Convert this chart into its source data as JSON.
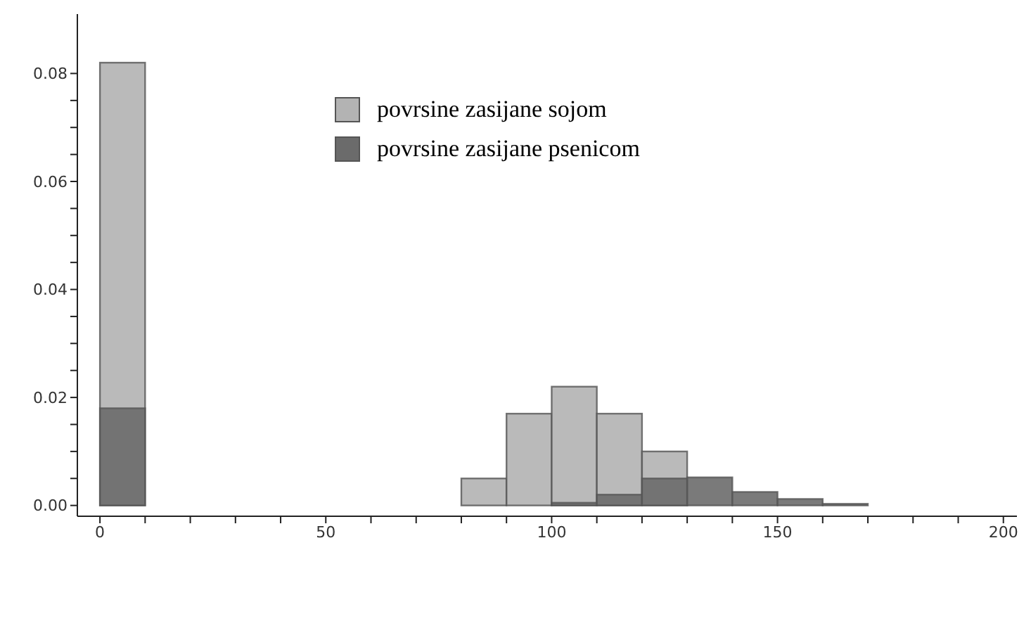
{
  "chart_data": {
    "type": "histogram",
    "bins": [
      0,
      10,
      20,
      30,
      40,
      50,
      60,
      70,
      80,
      90,
      100,
      110,
      120,
      130,
      140,
      150,
      160,
      170,
      180,
      190,
      200
    ],
    "series": [
      {
        "name": "povrsine zasijane sojom",
        "color": "#b3b3b3",
        "values": [
          0.082,
          0,
          0,
          0,
          0,
          0,
          0,
          0,
          0.005,
          0.017,
          0.022,
          0.017,
          0.01,
          0,
          0,
          0,
          0,
          0,
          0,
          0
        ]
      },
      {
        "name": "povrsine zasijane psenicom",
        "color": "#6b6b6b",
        "values": [
          0.018,
          0,
          0,
          0,
          0,
          0,
          0,
          0,
          0,
          0,
          0.0005,
          0.002,
          0.005,
          0.0052,
          0.0025,
          0.0012,
          0.0003,
          0,
          0,
          0
        ]
      }
    ],
    "xlim": [
      -5,
      203
    ],
    "ylim": [
      -0.002,
      0.091
    ],
    "xticks": [
      0,
      {
        "value": 10,
        "label": null
      },
      {
        "value": 20,
        "label": null
      },
      {
        "value": 30,
        "label": null
      },
      {
        "value": 40,
        "label": null
      },
      50,
      {
        "value": 60,
        "label": null
      },
      {
        "value": 70,
        "label": null
      },
      {
        "value": 80,
        "label": null
      },
      {
        "value": 90,
        "label": null
      },
      100,
      {
        "value": 110,
        "label": null
      },
      {
        "value": 120,
        "label": null
      },
      {
        "value": 130,
        "label": null
      },
      {
        "value": 140,
        "label": null
      },
      150,
      {
        "value": 160,
        "label": null
      },
      {
        "value": 170,
        "label": null
      },
      {
        "value": 180,
        "label": null
      },
      {
        "value": 190,
        "label": null
      },
      200
    ],
    "yticks": [
      {
        "value": 0,
        "label": "0.00"
      },
      {
        "value": 0.005,
        "label": null
      },
      {
        "value": 0.01,
        "label": null
      },
      {
        "value": 0.015,
        "label": null
      },
      0.02,
      {
        "value": 0.025,
        "label": null
      },
      {
        "value": 0.03,
        "label": null
      },
      {
        "value": 0.035,
        "label": null
      },
      0.04,
      {
        "value": 0.045,
        "label": null
      },
      {
        "value": 0.05,
        "label": null
      },
      {
        "value": 0.055,
        "label": null
      },
      0.06,
      {
        "value": 0.065,
        "label": null
      },
      {
        "value": 0.07,
        "label": null
      },
      {
        "value": 0.075,
        "label": null
      },
      0.08
    ],
    "legend": "top",
    "grid": false
  }
}
